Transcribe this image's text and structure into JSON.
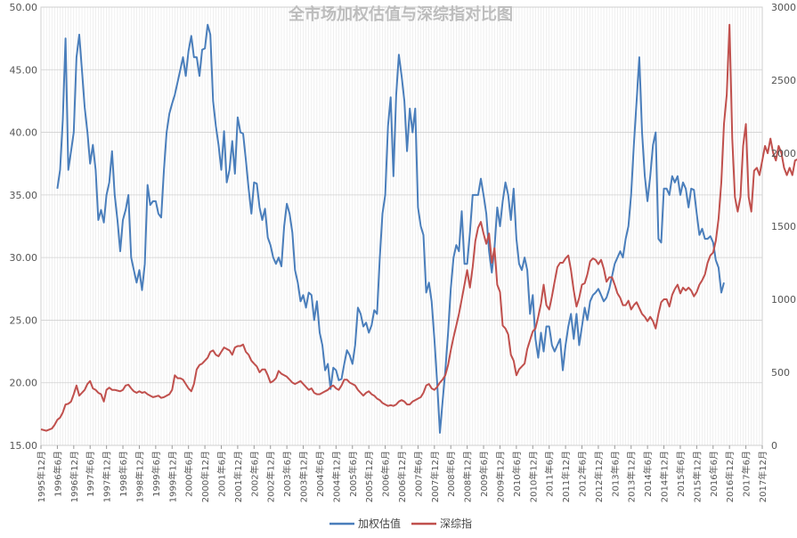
{
  "chart_data": {
    "type": "line",
    "title": "全市场加权估值与深综指对比图",
    "x_tick_labels": [
      "1995年12月",
      "1996年6月",
      "1996年12月",
      "1997年6月",
      "1997年12月",
      "1998年6月",
      "1998年12月",
      "1999年6月",
      "1999年12月",
      "2000年6月",
      "2000年12月",
      "2001年6月",
      "2001年12月",
      "2002年6月",
      "2002年12月",
      "2003年6月",
      "2003年12月",
      "2004年6月",
      "2004年12月",
      "2005年6月",
      "2005年12月",
      "2006年6月",
      "2006年12月",
      "2007年6月",
      "2007年12月",
      "2008年6月",
      "2008年12月",
      "2009年6月",
      "2009年12月",
      "2010年6月",
      "2010年12月",
      "2011年6月",
      "2011年12月",
      "2012年6月",
      "2012年12月",
      "2013年6月",
      "2013年12月",
      "2014年6月",
      "2014年12月",
      "2015年6月",
      "2015年12月",
      "2016年6月",
      "2016年12月",
      "2017年6月",
      "2017年12月"
    ],
    "y_left": {
      "min": 15.0,
      "max": 50.0,
      "step": 5,
      "ticks": [
        "15.00",
        "20.00",
        "25.00",
        "30.00",
        "35.00",
        "40.00",
        "45.00",
        "50.00"
      ]
    },
    "y_right": {
      "min": 0,
      "max": 3000,
      "step": 500,
      "ticks": [
        "0",
        "500",
        "1000",
        "1500",
        "2000",
        "2500",
        "3000"
      ]
    },
    "x_start_index": 0,
    "legend_position": "bottom",
    "grid": true,
    "series": [
      {
        "name": "加权估值",
        "color": "#4a7ebb",
        "axis": "left",
        "start": 6,
        "values": [
          35.5,
          37.0,
          41.0,
          47.5,
          37.0,
          38.5,
          40.0,
          46.0,
          47.8,
          45.0,
          42.0,
          40.0,
          37.5,
          39.0,
          37.0,
          33.0,
          33.8,
          32.8,
          35.0,
          36.0,
          38.5,
          35.0,
          33.0,
          30.5,
          33.0,
          33.8,
          35.0,
          30.0,
          29.0,
          28.0,
          29.0,
          27.4,
          29.5,
          35.8,
          34.2,
          34.5,
          34.5,
          33.5,
          33.2,
          37.0,
          40.0,
          41.5,
          42.3,
          43.0,
          44.0,
          45.0,
          46.0,
          44.5,
          46.5,
          47.7,
          46.0,
          46.0,
          44.5,
          46.6,
          46.7,
          48.6,
          47.8,
          42.5,
          40.5,
          39.0,
          37.0,
          40.1,
          36.0,
          37.0,
          39.3,
          36.7,
          41.2,
          40.0,
          39.9,
          37.8,
          35.5,
          33.5,
          36.0,
          35.9,
          34.0,
          33.0,
          33.9,
          31.6,
          31.0,
          30.0,
          29.5,
          30.0,
          29.3,
          32.5,
          34.3,
          33.5,
          32.0,
          29.0,
          28.0,
          26.5,
          27.0,
          26.0,
          27.2,
          27.0,
          25.0,
          26.5,
          24.0,
          23.0,
          21.0,
          21.5,
          19.5,
          21.2,
          21.0,
          20.2,
          20.3,
          21.5,
          22.6,
          22.2,
          21.5,
          23.0,
          26.0,
          25.5,
          24.5,
          24.8,
          24.0,
          24.6,
          25.8,
          25.5,
          30.0,
          33.5,
          35.0,
          40.5,
          42.8,
          36.5,
          43.0,
          46.2,
          44.5,
          42.5,
          38.5,
          41.9,
          40.0,
          41.9,
          34.0,
          32.5,
          31.8,
          27.2,
          28.0,
          26.5,
          23.5,
          20.0,
          16.0,
          18.5,
          21.0,
          24.0,
          27.5,
          30.0,
          31.0,
          30.5,
          33.7,
          29.5,
          29.5,
          32.0,
          35.0,
          35.0,
          35.0,
          36.3,
          35.0,
          33.5,
          30.5,
          28.8,
          30.8,
          34.0,
          32.5,
          34.5,
          36.0,
          35.0,
          33.0,
          35.5,
          31.5,
          29.5,
          29.0,
          30.0,
          29.0,
          25.5,
          27.0,
          23.5,
          22.0,
          24.0,
          22.5,
          24.5,
          24.5,
          23.0,
          22.5,
          23.0,
          23.5,
          21.0,
          23.0,
          24.5,
          25.5,
          23.5,
          25.5,
          23.0,
          24.5,
          26.0,
          25.0,
          26.5,
          27.0,
          27.2,
          27.5,
          27.0,
          26.5,
          26.8,
          27.5,
          28.5,
          29.5,
          30.0,
          30.5,
          30.0,
          31.5,
          32.5,
          35.0,
          39.0,
          42.5,
          46.0,
          40.0,
          36.5,
          34.5,
          36.5,
          39.0,
          40.0,
          31.5,
          31.2,
          35.5,
          35.5,
          35.0,
          36.5,
          36.0,
          36.5,
          35.0,
          36.0,
          35.5,
          34.0,
          35.5,
          35.4,
          33.5,
          31.8,
          32.3,
          31.5,
          31.5,
          31.7,
          31.2,
          29.8,
          29.2,
          27.2,
          28.0
        ]
      },
      {
        "name": "深综指",
        "color": "#c0504d",
        "axis": "right",
        "start": 0,
        "values": [
          110,
          105,
          100,
          108,
          115,
          140,
          175,
          190,
          225,
          280,
          285,
          300,
          350,
          410,
          340,
          360,
          380,
          420,
          440,
          390,
          380,
          360,
          350,
          300,
          380,
          395,
          380,
          380,
          375,
          370,
          380,
          410,
          415,
          390,
          370,
          360,
          370,
          360,
          365,
          350,
          340,
          330,
          335,
          340,
          325,
          330,
          340,
          350,
          380,
          480,
          460,
          460,
          450,
          420,
          390,
          370,
          420,
          520,
          550,
          560,
          580,
          600,
          640,
          650,
          620,
          610,
          640,
          670,
          660,
          650,
          620,
          670,
          680,
          680,
          690,
          640,
          620,
          580,
          560,
          540,
          500,
          520,
          520,
          480,
          430,
          440,
          460,
          510,
          490,
          480,
          470,
          450,
          430,
          420,
          430,
          440,
          420,
          400,
          380,
          390,
          360,
          350,
          350,
          360,
          370,
          380,
          400,
          410,
          390,
          380,
          410,
          450,
          450,
          430,
          420,
          410,
          380,
          360,
          340,
          360,
          370,
          350,
          340,
          320,
          310,
          290,
          280,
          270,
          275,
          270,
          280,
          300,
          310,
          300,
          280,
          280,
          300,
          310,
          320,
          330,
          360,
          410,
          420,
          390,
          380,
          400,
          430,
          450,
          480,
          550,
          650,
          740,
          820,
          900,
          1000,
          1100,
          1200,
          1080,
          1220,
          1400,
          1490,
          1530,
          1450,
          1380,
          1450,
          1250,
          1350,
          1100,
          1050,
          820,
          800,
          760,
          620,
          580,
          480,
          520,
          540,
          560,
          660,
          720,
          780,
          800,
          880,
          970,
          1100,
          960,
          930,
          1020,
          1120,
          1220,
          1250,
          1250,
          1280,
          1300,
          1200,
          1060,
          950,
          1010,
          1100,
          1110,
          1170,
          1260,
          1280,
          1270,
          1240,
          1270,
          1210,
          1120,
          1150,
          1150,
          1100,
          1040,
          1010,
          960,
          960,
          990,
          930,
          960,
          980,
          940,
          900,
          880,
          850,
          880,
          850,
          800,
          900,
          980,
          1000,
          1000,
          950,
          1030,
          1070,
          1100,
          1040,
          1080,
          1060,
          1080,
          1060,
          1020,
          1050,
          1100,
          1130,
          1170,
          1250,
          1300,
          1320,
          1400,
          1550,
          1800,
          2200,
          2400,
          2880,
          2100,
          1700,
          1600,
          1700,
          2050,
          2200,
          1700,
          1600,
          1880,
          1900,
          1850,
          1950,
          2050,
          2000,
          2100,
          2000,
          1950,
          2050,
          2000,
          1900,
          1850,
          1900,
          1850,
          1950,
          1960,
          1800,
          1800,
          1850,
          1800
        ]
      }
    ]
  }
}
